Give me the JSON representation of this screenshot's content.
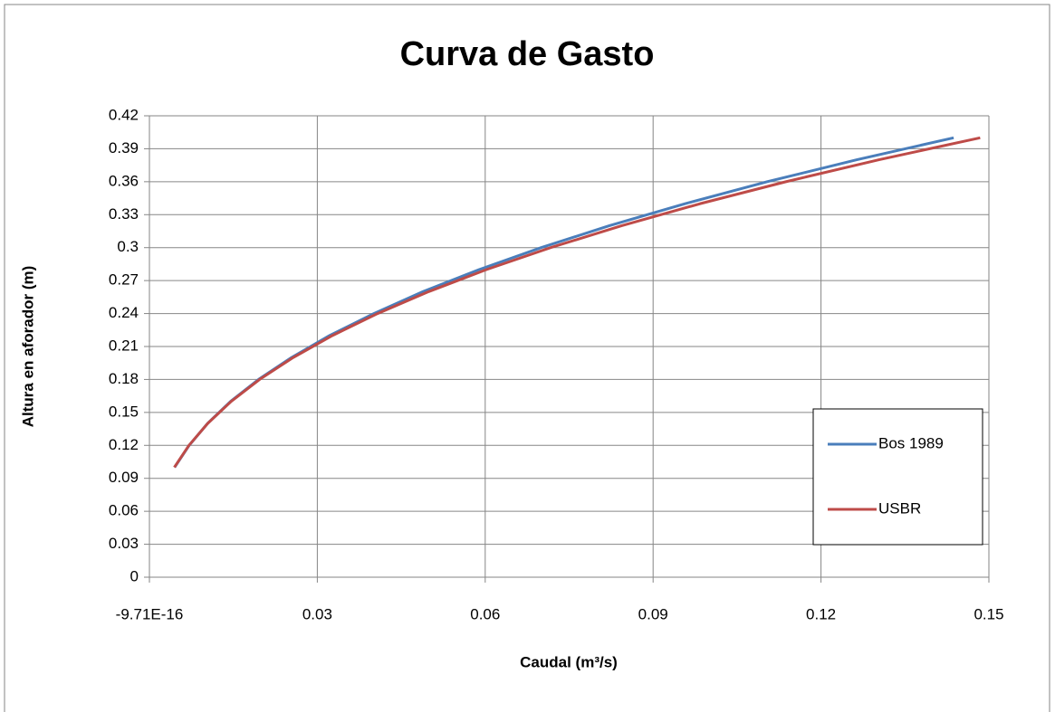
{
  "chart_data": {
    "type": "line",
    "title": "Curva de Gasto",
    "xlabel": "Caudal (m³/s)",
    "ylabel": "Altura en aforador (m)",
    "xlim": [
      -9.71e-16,
      0.15
    ],
    "xticks": [
      {
        "value": -9.71e-16,
        "label": "-9.71E-16"
      },
      0.03,
      0.06,
      0.09,
      0.12,
      0.15
    ],
    "ylim": [
      0,
      0.42
    ],
    "yticks": [
      0,
      0.03,
      0.06,
      0.09,
      0.12,
      0.15,
      0.18,
      0.21,
      0.24,
      0.27,
      0.3,
      0.33,
      0.36,
      0.39,
      0.42
    ],
    "grid": true,
    "legend": "right",
    "series": [
      {
        "name": "Bos 1989",
        "color": "#4a7ebb",
        "x": [
          0.0045,
          0.0071,
          0.0104,
          0.0145,
          0.0195,
          0.0254,
          0.0322,
          0.0401,
          0.0489,
          0.0589,
          0.07,
          0.0822,
          0.0957,
          0.1104,
          0.1264,
          0.1437
        ],
        "values": [
          0.1,
          0.12,
          0.14,
          0.16,
          0.18,
          0.2,
          0.22,
          0.24,
          0.26,
          0.28,
          0.3,
          0.32,
          0.34,
          0.36,
          0.38,
          0.4
        ]
      },
      {
        "name": "USBR",
        "color": "#be4b48",
        "x": [
          0.00445,
          0.00706,
          0.01042,
          0.01461,
          0.01969,
          0.0257,
          0.03271,
          0.04077,
          0.04992,
          0.06021,
          0.07169,
          0.08441,
          0.0984,
          0.11372,
          0.13037,
          0.14844
        ],
        "values": [
          0.1,
          0.12,
          0.14,
          0.16,
          0.18,
          0.2,
          0.22,
          0.24,
          0.26,
          0.28,
          0.3,
          0.32,
          0.34,
          0.36,
          0.38,
          0.4
        ]
      }
    ]
  }
}
